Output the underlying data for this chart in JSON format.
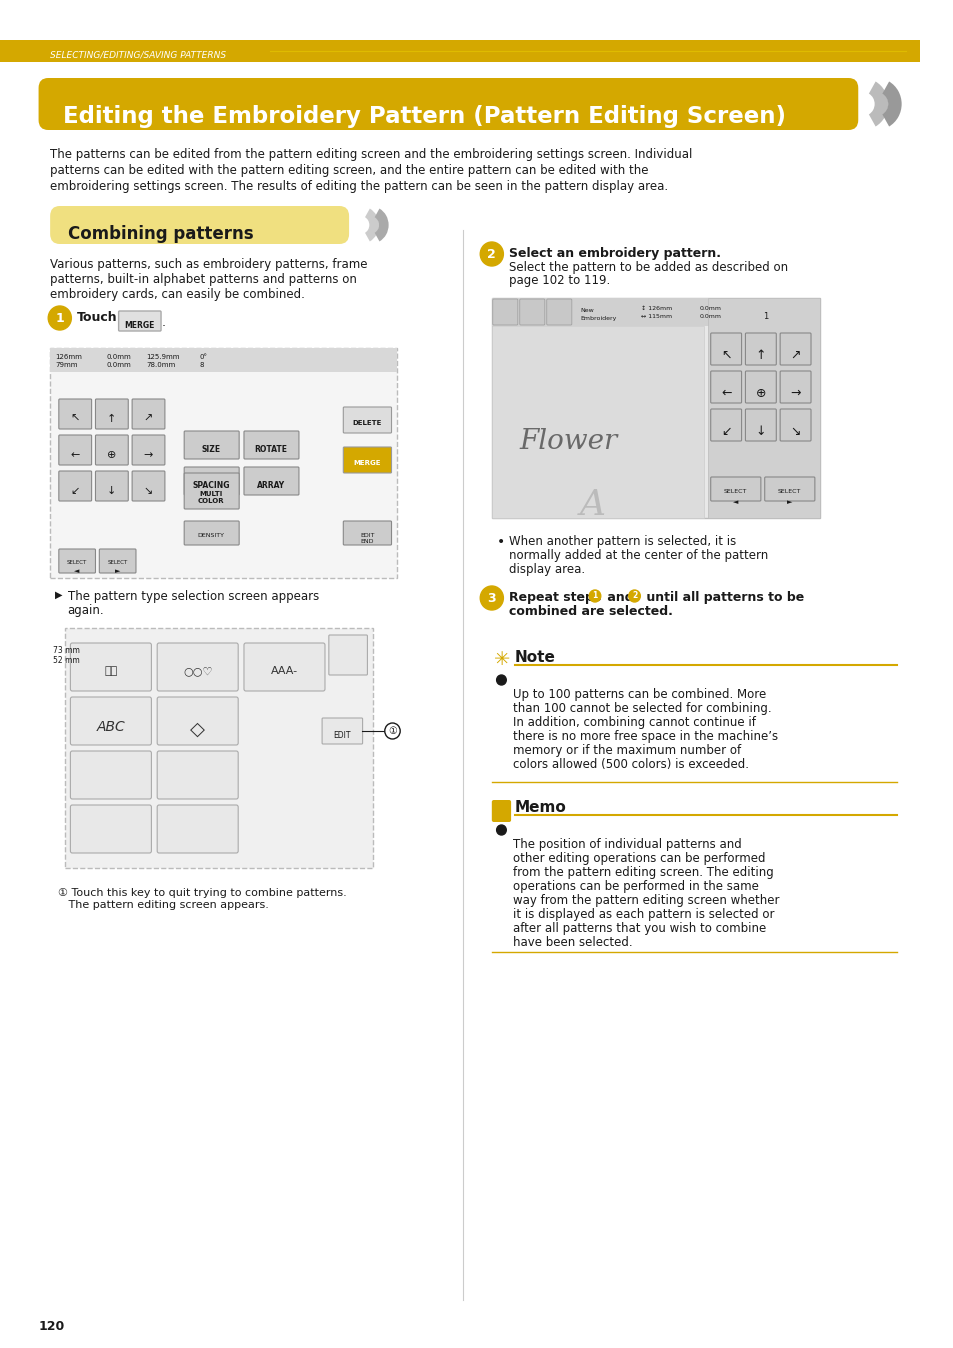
{
  "page_number": "120",
  "header_bar_color": "#D4A800",
  "header_bar_text": "SELECTING/EDITING/SAVING PATTERNS",
  "header_bar_text_color": "#FFFFFF",
  "title_bg_color": "#D4A800",
  "title_text": "Editing the Embroidery Pattern (Pattern Editing Screen)",
  "title_text_color": "#FFFFFF",
  "body_text_color": "#000000",
  "section_header_bg": "#F5E9A0",
  "section_header_text": "Combining patterns",
  "section_header_text_color": "#000000",
  "intro_line1": "The patterns can be edited from the pattern editing screen and the embroidering settings screen. Individual",
  "intro_line2": "patterns can be edited with the pattern editing screen, and the entire pattern can be edited with the",
  "intro_line3": "embroidering settings screen. The results of editing the pattern can be seen in the pattern display area.",
  "combining_line1": "Various patterns, such as embroidery patterns, frame",
  "combining_line2": "patterns, built-in alphabet patterns and patterns on",
  "combining_line3": "embroidery cards, can easily be combined.",
  "step2_bold": "Select an embroidery pattern.",
  "step2_text1": "Select the pattern to be added as described on",
  "step2_text2": "page 102 to 119.",
  "step2_bullet1": "When another pattern is selected, it is",
  "step2_bullet2": "normally added at the center of the pattern",
  "step2_bullet3": "display area.",
  "step3_pre": "Repeat steps ",
  "step3_post": " until all patterns to be",
  "step3_post2": "combined are selected.",
  "arrow_text1": "The pattern type selection screen appears",
  "arrow_text2": "again.",
  "footnote1": "① Touch this key to quit trying to combine patterns.",
  "footnote2": "   The pattern editing screen appears.",
  "note_title": "Note",
  "note_line1": "Up to 100 patterns can be combined. More",
  "note_line2": "than 100 cannot be selected for combining.",
  "note_line3": "In addition, combining cannot continue if",
  "note_line4": "there is no more free space in the machine’s",
  "note_line5": "memory or if the maximum number of",
  "note_line6": "colors allowed (500 colors) is exceeded.",
  "memo_title": "Memo",
  "memo_line1": "The position of individual patterns and",
  "memo_line2": "other editing operations can be performed",
  "memo_line3": "from the pattern editing screen. The editing",
  "memo_line4": "operations can be performed in the same",
  "memo_line5": "way from the pattern editing screen whether",
  "memo_line6": "it is displayed as each pattern is selected or",
  "memo_line7": "after all patterns that you wish to combine",
  "memo_line8": "have been selected.",
  "gold_color": "#D4A800",
  "light_gold_bg": "#F0E080",
  "divider_color": "#D4A800",
  "background_color": "#FFFFFF",
  "font_color": "#1A1A1A"
}
